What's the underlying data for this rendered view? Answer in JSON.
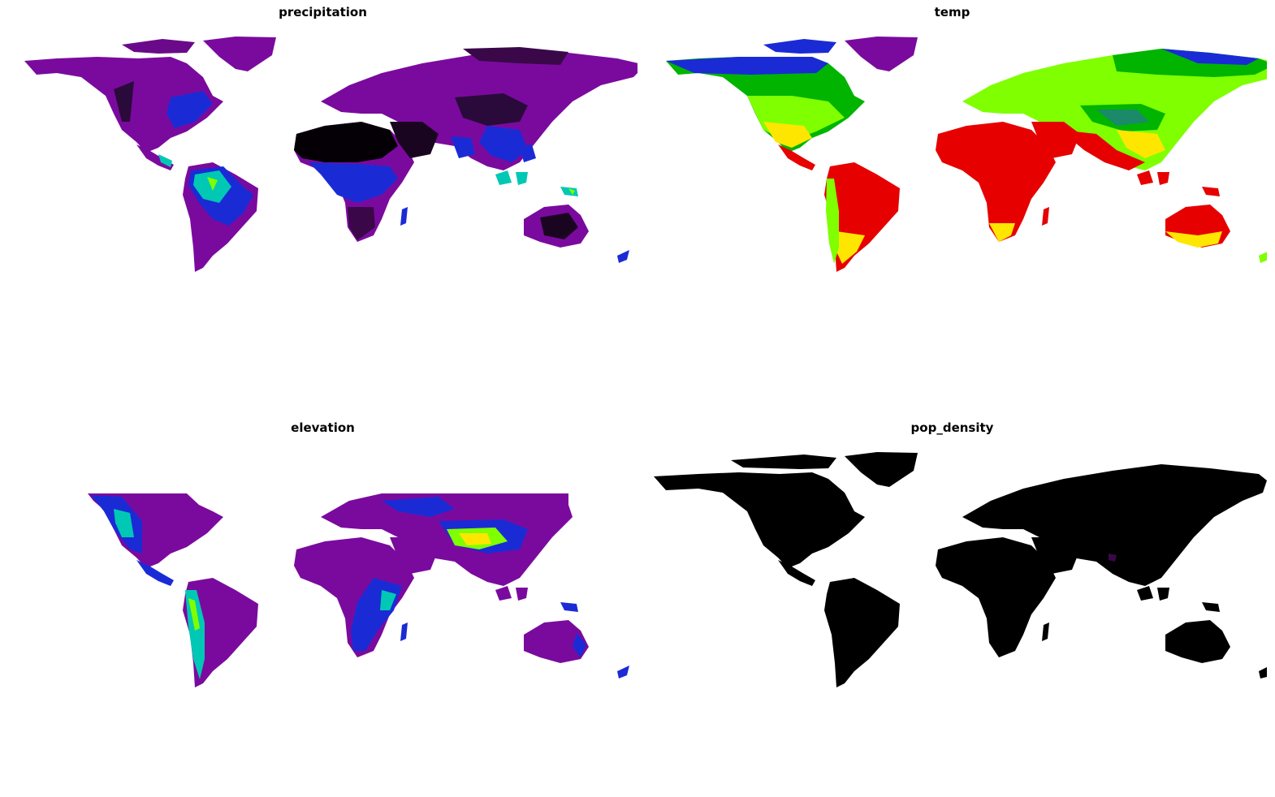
{
  "panels": [
    {
      "key": "precipitation",
      "title": "precipitation",
      "palette": [
        "#000000",
        "#7a0a9e",
        "#1a2bd6",
        "#00c8b4",
        "#7fff00"
      ]
    },
    {
      "key": "temp",
      "title": "temp",
      "palette": [
        "#7a0a9e",
        "#1a2bd6",
        "#00b400",
        "#7fff00",
        "#ffe600",
        "#e60000"
      ]
    },
    {
      "key": "elevation",
      "title": "elevation",
      "palette": [
        "#7a0a9e",
        "#1a2bd6",
        "#00c8b4",
        "#7fff00",
        "#ffe600"
      ]
    },
    {
      "key": "pop_density",
      "title": "pop_density",
      "palette": [
        "#000000",
        "#7a0a9e"
      ]
    }
  ]
}
